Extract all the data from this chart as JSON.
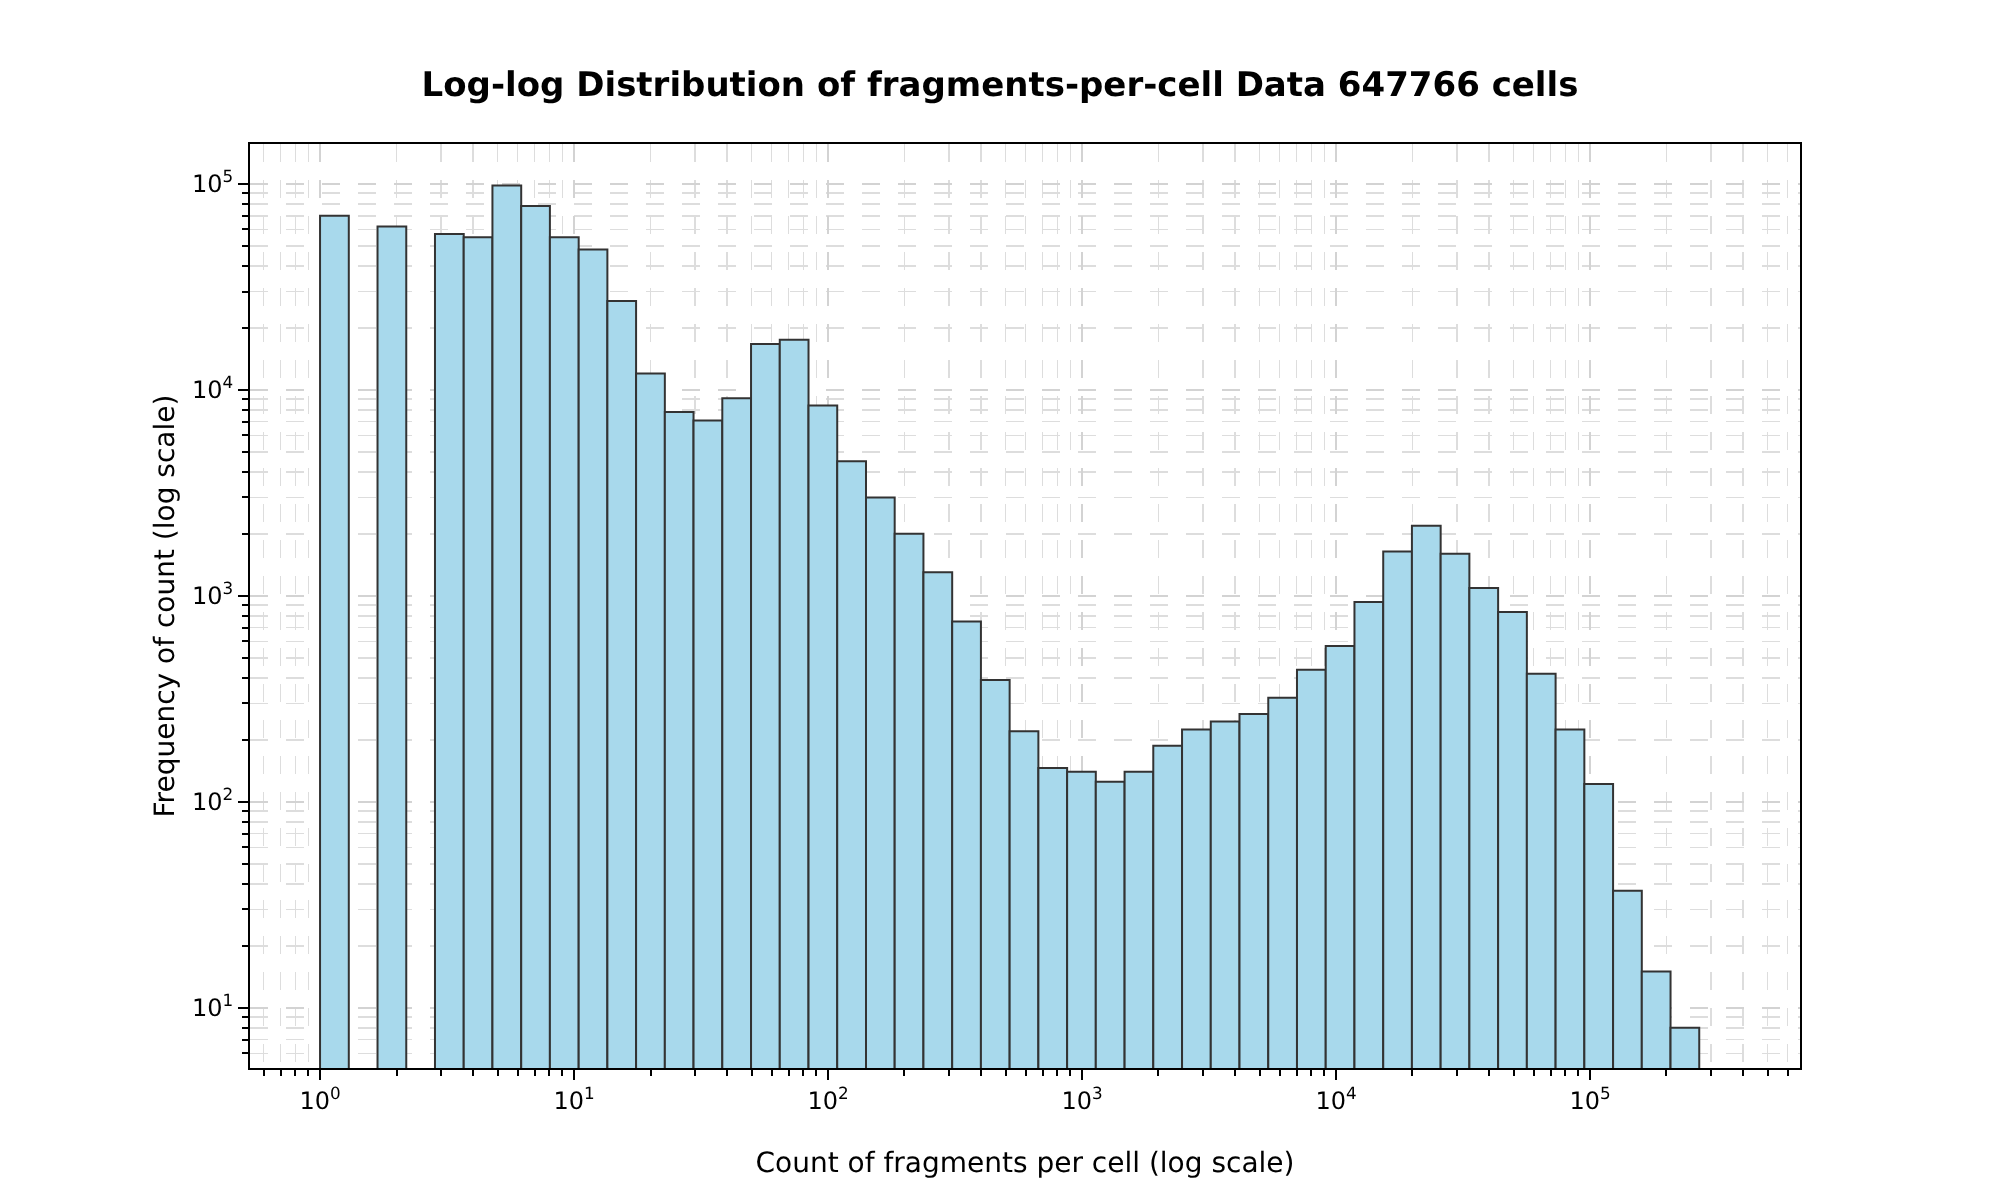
{
  "chart_data": {
    "type": "histogram",
    "title": "Log-log Distribution of fragments-per-cell Data 647766 cells",
    "xlabel": "Count of fragments per cell (log scale)",
    "ylabel": "Frequency of count (log scale)",
    "bins": [
      1,
      1.298,
      1.684,
      2.185,
      2.835,
      3.679,
      4.773,
      6.194,
      8.035,
      10.43,
      13.53,
      17.55,
      22.78,
      29.55,
      38.35,
      49.76,
      64.57,
      83.79,
      108.7,
      141.1,
      183.0,
      237.5,
      308.2,
      399.9,
      518.8,
      673.2,
      873.6,
      1133,
      1471,
      1908,
      2476,
      3213,
      4169,
      5410,
      7020,
      9109,
      11820,
      15340,
      19900,
      25820,
      33500,
      43470,
      56410,
      73200,
      94980,
      123250,
      159920,
      207510,
      269150
    ],
    "values": [
      70000,
      null,
      62000,
      null,
      57000,
      55000,
      98000,
      78000,
      55000,
      48000,
      27000,
      12000,
      7800,
      7100,
      9100,
      16700,
      17500,
      8400,
      4500,
      3000,
      2000,
      1300,
      750,
      390,
      220,
      146,
      140,
      125,
      140,
      187,
      224,
      245,
      267,
      320,
      437,
      571,
      933,
      1640,
      2190,
      1600,
      1090,
      835,
      418,
      224,
      122,
      37,
      15,
      8
    ],
    "color": "#a8d9ec",
    "log": "xy",
    "grid": true,
    "xlim": [
      0.53,
      671000
    ],
    "ylim": [
      5.1,
      156000
    ],
    "xticks": [
      {
        "value": 1,
        "label": "10$^{0}$"
      },
      {
        "value": 10,
        "label": "10$^{1}$"
      },
      {
        "value": 100,
        "label": "10$^{2}$"
      },
      {
        "value": 1000,
        "label": "10$^{3}$"
      },
      {
        "value": 10000,
        "label": "10$^{4}$"
      },
      {
        "value": 100000,
        "label": "10$^{5}$"
      }
    ],
    "yticks": [
      {
        "value": 10,
        "label": "10$^{1}$"
      },
      {
        "value": 100,
        "label": "10$^{2}$"
      },
      {
        "value": 1000,
        "label": "10$^{3}$"
      },
      {
        "value": 10000,
        "label": "10$^{4}$"
      },
      {
        "value": 100000,
        "label": "10$^{5}$"
      }
    ]
  }
}
